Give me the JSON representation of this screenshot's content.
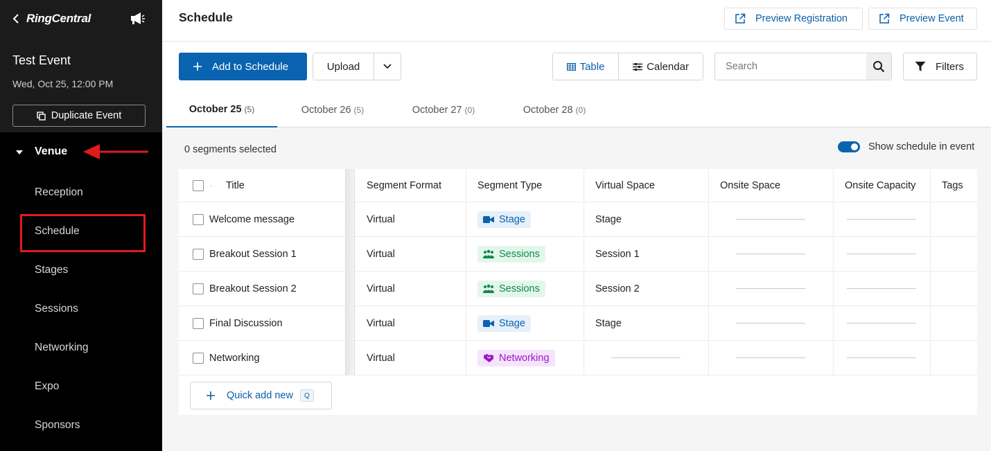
{
  "sidebar": {
    "logo": "RingCentral",
    "event_title": "Test Event",
    "event_date": "Wed, Oct 25, 12:00 PM",
    "duplicate_label": "Duplicate Event",
    "venue_label": "Venue",
    "items": [
      "Reception",
      "Schedule",
      "Stages",
      "Sessions",
      "Networking",
      "Expo",
      "Sponsors"
    ]
  },
  "header": {
    "title": "Schedule",
    "preview_registration": "Preview Registration",
    "preview_event": "Preview Event"
  },
  "toolbar": {
    "add_label": "Add to Schedule",
    "upload_label": "Upload",
    "view_table": "Table",
    "view_calendar": "Calendar",
    "search_placeholder": "Search",
    "filters_label": "Filters"
  },
  "tabs": [
    {
      "label": "October 25",
      "count": "(5)",
      "active": true
    },
    {
      "label": "October 26",
      "count": "(5)",
      "active": false
    },
    {
      "label": "October 27",
      "count": "(0)",
      "active": false
    },
    {
      "label": "October 28",
      "count": "(0)",
      "active": false
    }
  ],
  "selection": {
    "info": "0 segments selected",
    "show_schedule_label": "Show schedule in event",
    "show_schedule_on": true
  },
  "table": {
    "columns": [
      "Title",
      "Segment Format",
      "Segment Type",
      "Virtual Space",
      "Onsite Space",
      "Onsite Capacity",
      "Tags"
    ],
    "rows": [
      {
        "title": "Welcome message",
        "format": "Virtual",
        "type": "Stage",
        "type_kind": "stage",
        "virtual_space": "Stage"
      },
      {
        "title": "Breakout Session 1",
        "format": "Virtual",
        "type": "Sessions",
        "type_kind": "sessions",
        "virtual_space": "Session 1"
      },
      {
        "title": "Breakout Session 2",
        "format": "Virtual",
        "type": "Sessions",
        "type_kind": "sessions",
        "virtual_space": "Session 2"
      },
      {
        "title": "Final Discussion",
        "format": "Virtual",
        "type": "Stage",
        "type_kind": "stage",
        "virtual_space": "Stage"
      },
      {
        "title": "Networking",
        "format": "Virtual",
        "type": "Networking",
        "type_kind": "networking",
        "virtual_space": ""
      }
    ],
    "quick_add_label": "Quick add new",
    "quick_add_shortcut": "Q"
  },
  "colors": {
    "primary": "#0a63b0",
    "annotation_red": "#e11b1b",
    "sessions_green": "#0f8a45",
    "networking_purple": "#9b18c7"
  }
}
